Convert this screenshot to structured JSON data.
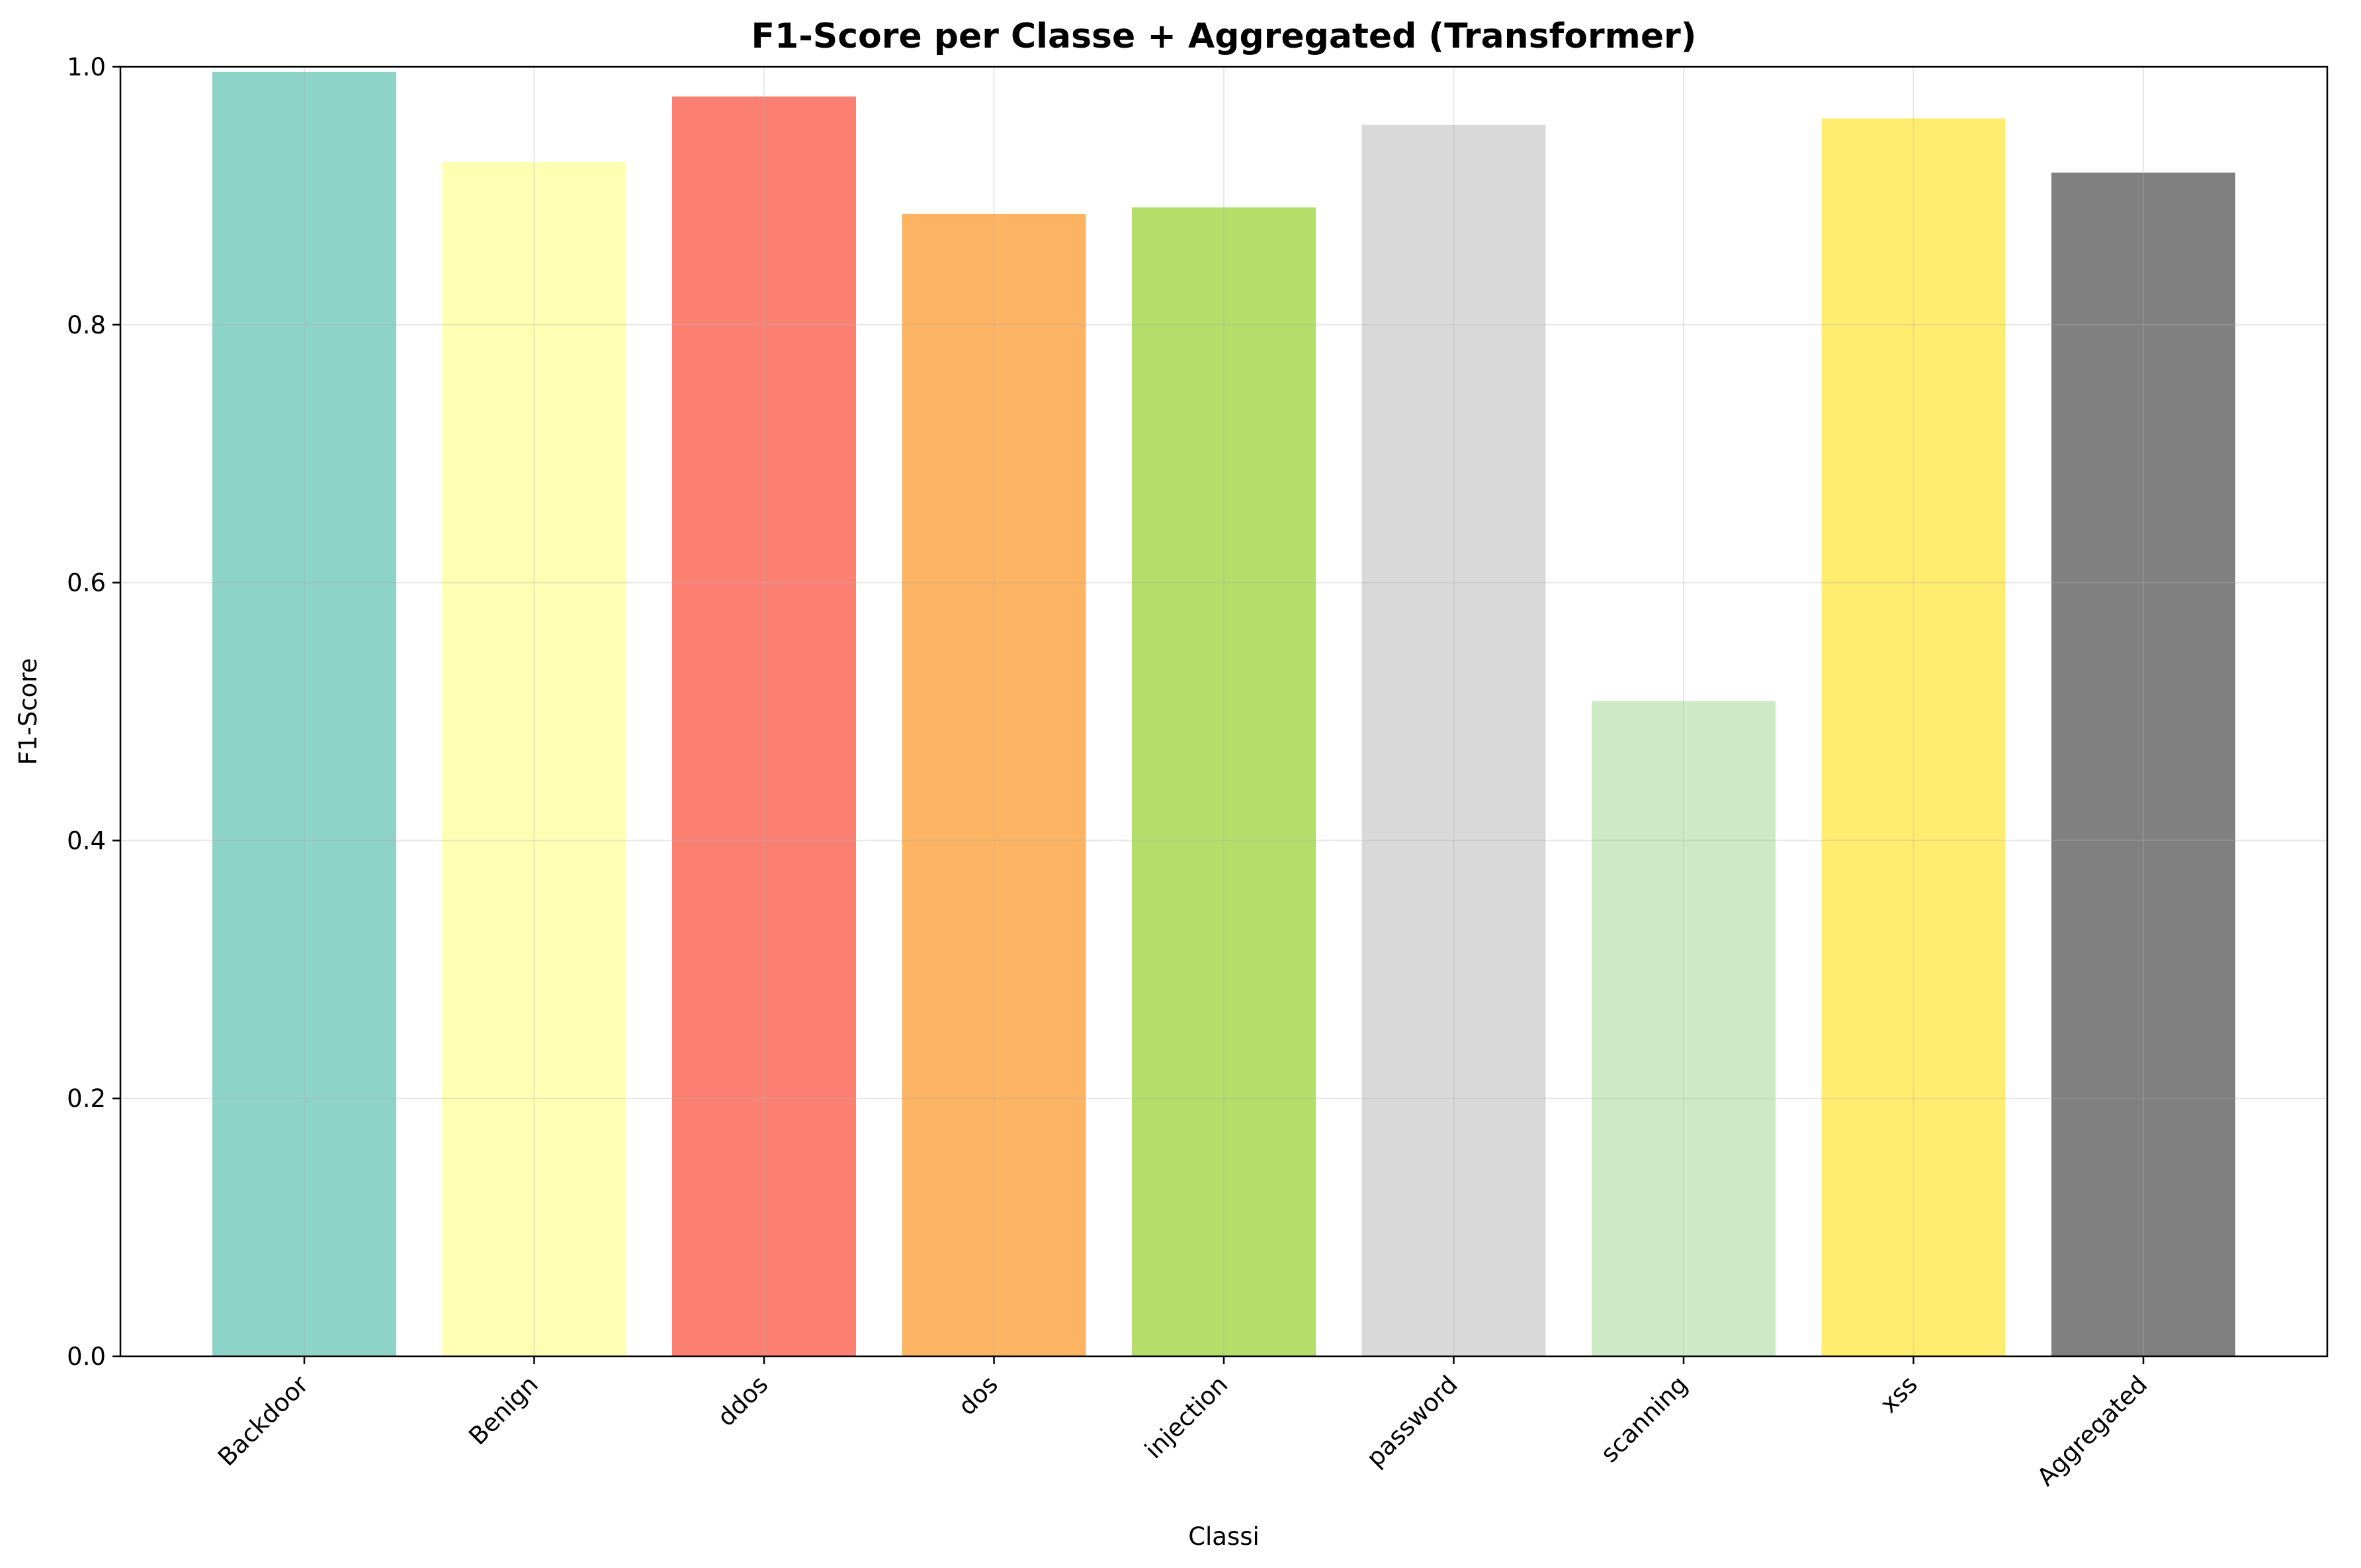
{
  "chart_data": {
    "type": "bar",
    "title": "F1-Score per Classe + Aggregated (Transformer)",
    "xlabel": "Classi",
    "ylabel": "F1-Score",
    "ylim": [
      0,
      1.0
    ],
    "yticks": [
      "0.0",
      "0.2",
      "0.4",
      "0.6",
      "0.8",
      "1.0"
    ],
    "grid": true,
    "categories": [
      "Backdoor",
      "Benign",
      "ddos",
      "dos",
      "injection",
      "password",
      "scanning",
      "xss",
      "Aggregated"
    ],
    "values": [
      0.996,
      0.926,
      0.977,
      0.886,
      0.891,
      0.955,
      0.508,
      0.96,
      0.918
    ],
    "colors": [
      "#8dd3c7",
      "#ffffb3",
      "#fb8072",
      "#fdb462",
      "#b3de69",
      "#d9d9d9",
      "#ccebc5",
      "#ffed6f",
      "#808080"
    ]
  }
}
